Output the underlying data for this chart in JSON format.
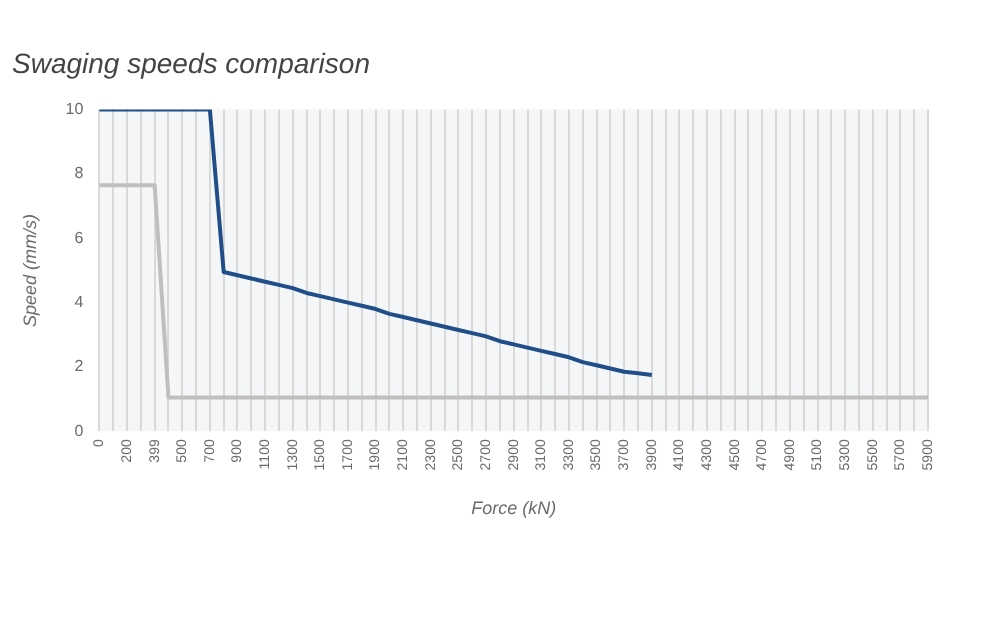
{
  "chart_data": {
    "type": "line",
    "title": "Swaging speeds comparison",
    "xlabel": "Force (kN)",
    "ylabel": "Speed (mm/s)",
    "categories": [
      "0",
      null,
      "200",
      null,
      "399",
      null,
      "500",
      null,
      "700",
      null,
      "900",
      null,
      "1100",
      null,
      "1300",
      null,
      "1500",
      null,
      "1700",
      null,
      "1900",
      null,
      "2100",
      null,
      "2300",
      null,
      "2500",
      null,
      "2700",
      null,
      "2900",
      null,
      "3100",
      null,
      "3300",
      null,
      "3500",
      null,
      "3700",
      null,
      "3900",
      null,
      "4100",
      null,
      "4300",
      null,
      "4500",
      null,
      "4700",
      null,
      "4900",
      null,
      "5100",
      null,
      "5300",
      null,
      "5500",
      null,
      "5700",
      null,
      "5900"
    ],
    "series": [
      {
        "color": "#1f4e89",
        "values": [
          10,
          10,
          10,
          10,
          10,
          10,
          10,
          10,
          10,
          4.95,
          4.85,
          4.75,
          4.65,
          4.55,
          4.45,
          4.3,
          4.2,
          4.1,
          4.0,
          3.9,
          3.8,
          3.65,
          3.55,
          3.45,
          3.35,
          3.25,
          3.15,
          3.05,
          2.95,
          2.8,
          2.7,
          2.6,
          2.5,
          2.4,
          2.3,
          2.15,
          2.05,
          1.95,
          1.85,
          1.8,
          1.75,
          null,
          null,
          null,
          null,
          null,
          null,
          null,
          null,
          null,
          null,
          null,
          null,
          null,
          null,
          null,
          null,
          null,
          null,
          null,
          null
        ]
      },
      {
        "color": "#bfbfbf",
        "values": [
          7.65,
          7.65,
          7.65,
          7.65,
          7.65,
          1.05,
          1.05,
          1.05,
          1.05,
          1.05,
          1.05,
          1.05,
          1.05,
          1.05,
          1.05,
          1.05,
          1.05,
          1.05,
          1.05,
          1.05,
          1.05,
          1.05,
          1.05,
          1.05,
          1.05,
          1.05,
          1.05,
          1.05,
          1.05,
          1.05,
          1.05,
          1.05,
          1.05,
          1.05,
          1.05,
          1.05,
          1.05,
          1.05,
          1.05,
          1.05,
          1.05,
          1.05,
          1.05,
          1.05,
          1.05,
          1.05,
          1.05,
          1.05,
          1.05,
          1.05,
          1.05,
          1.05,
          1.05,
          1.05,
          1.05,
          1.05,
          1.05,
          1.05,
          1.05,
          1.05,
          1.05
        ]
      }
    ],
    "ylim": [
      0,
      10
    ],
    "yticks": [
      0,
      2,
      4,
      6,
      8,
      10
    ],
    "grid": "x",
    "marker": "none",
    "line_style": "solid"
  }
}
